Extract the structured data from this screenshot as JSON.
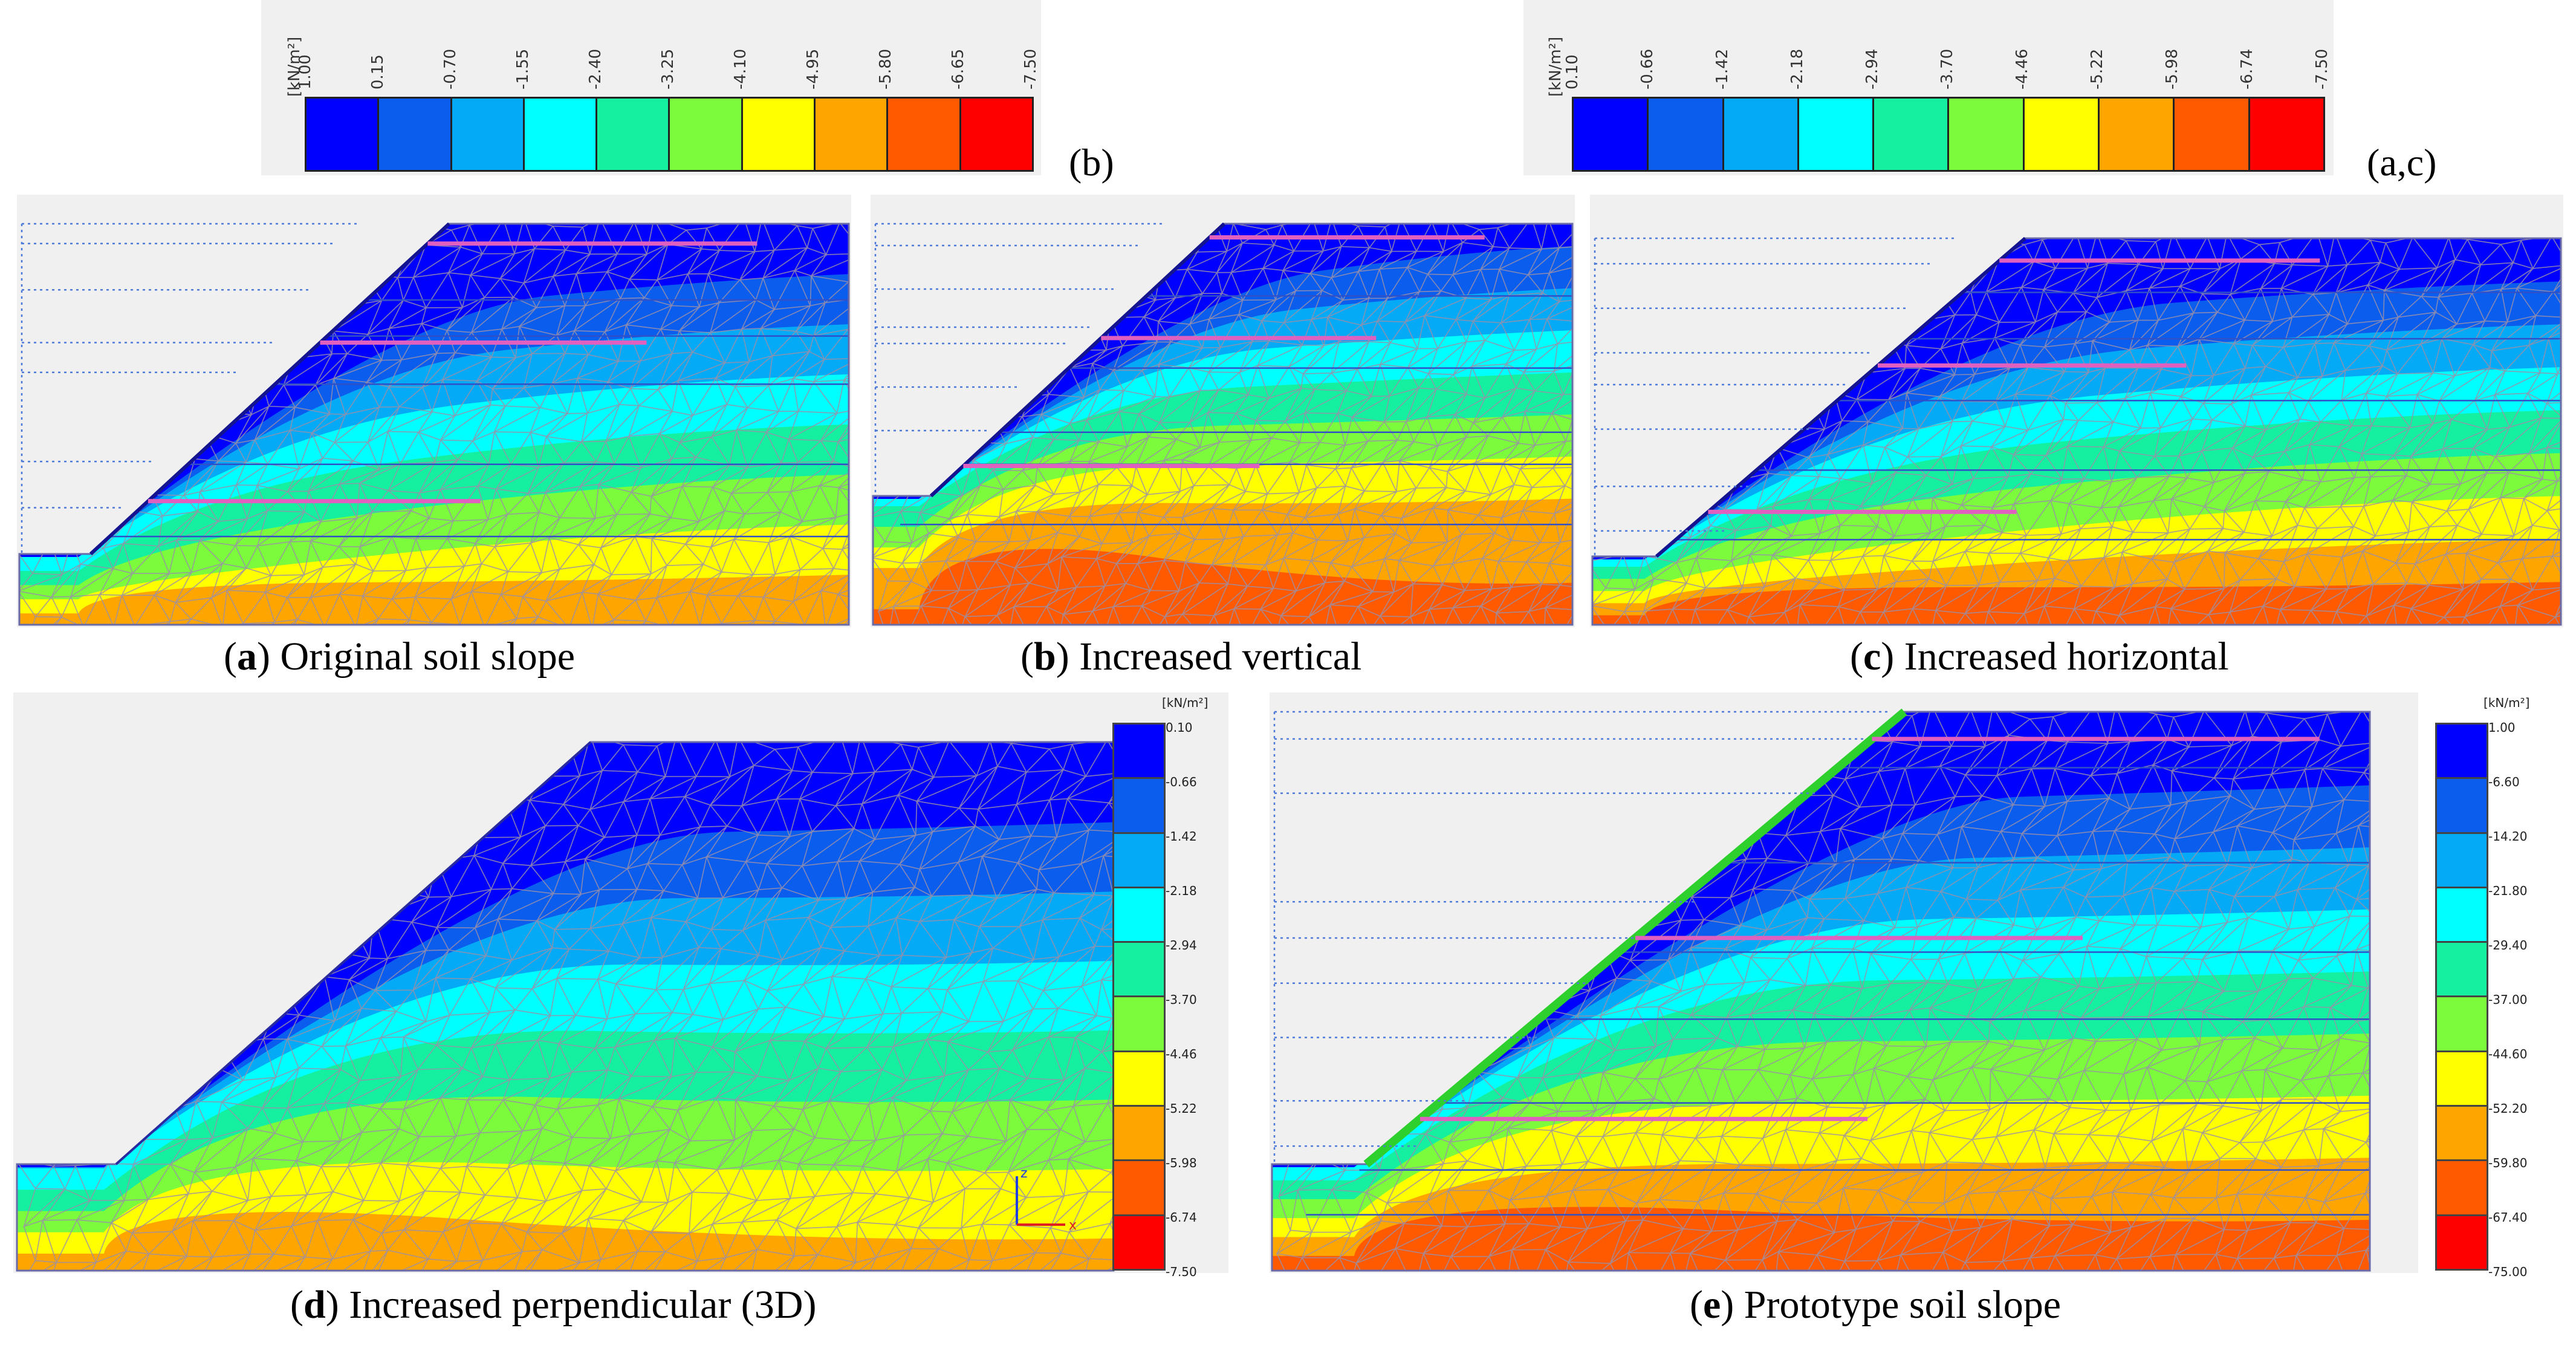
{
  "colors": [
    "#0000ff",
    "#0b5dee",
    "#05aaf6",
    "#00ffff",
    "#14f0a0",
    "#7cfa3c",
    "#ffff00",
    "#ffa500",
    "#ff5a00",
    "#ff0000"
  ],
  "legend_b": {
    "unit": "[kN/m²]",
    "ticks": [
      "1.00",
      "0.15",
      "-0.70",
      "-1.55",
      "-2.40",
      "-3.25",
      "-4.10",
      "-4.95",
      "-5.80",
      "-6.65",
      "-7.50"
    ],
    "tag": "(b)"
  },
  "legend_ac": {
    "unit": "[kN/m²]",
    "ticks": [
      "0.10",
      "-0.66",
      "-1.42",
      "-2.18",
      "-2.94",
      "-3.70",
      "-4.46",
      "-5.22",
      "-5.98",
      "-6.74",
      "-7.50"
    ],
    "tag": "(a,c)"
  },
  "legend_d": {
    "unit": "[kN/m²]",
    "ticks": [
      "0.10",
      "-0.66",
      "-1.42",
      "-2.18",
      "-2.94",
      "-3.70",
      "-4.46",
      "-5.22",
      "-5.98",
      "-6.74",
      "-7.50"
    ]
  },
  "legend_e": {
    "unit": "[kN/m²]",
    "ticks": [
      "1.00",
      "-6.60",
      "-14.20",
      "-21.80",
      "-29.40",
      "-37.00",
      "-44.60",
      "-52.20",
      "-59.80",
      "-67.40",
      "-75.00"
    ]
  },
  "captions": {
    "a": {
      "letter": "a",
      "text": " Original soil slope"
    },
    "b": {
      "letter": "b",
      "text": " Increased vertical"
    },
    "c": {
      "letter": "c",
      "text": " Increased horizontal"
    },
    "d": {
      "letter": "d",
      "text": " Increased perpendicular (3D)"
    },
    "e": {
      "letter": "e",
      "text": " Prototype soil slope"
    }
  },
  "axes": {
    "z": "z",
    "x": "x"
  }
}
